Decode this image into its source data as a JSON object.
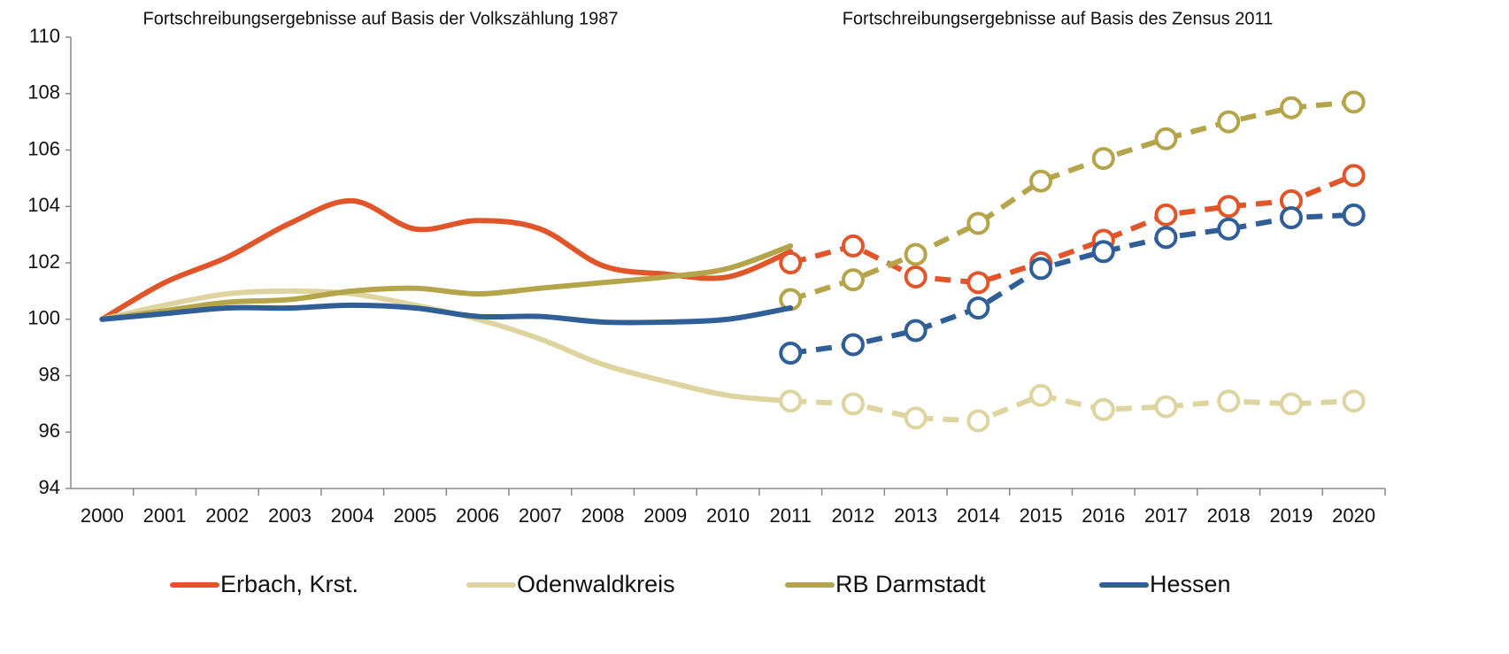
{
  "chart_data": {
    "type": "line",
    "annotations": [
      "Fortschreibungsergebnisse auf Basis der Volkszählung 1987",
      "Fortschreibungsergebnisse auf Basis des Zensus 2011"
    ],
    "categories": [
      "2000",
      "2001",
      "2002",
      "2003",
      "2004",
      "2005",
      "2006",
      "2007",
      "2008",
      "2009",
      "2010",
      "2011",
      "2012",
      "2013",
      "2014",
      "2015",
      "2016",
      "2017",
      "2018",
      "2019",
      "2020"
    ],
    "series": [
      {
        "name": "Erbach, Krst.",
        "color": "#e0562a",
        "values": [
          100,
          101.3,
          102.2,
          103.4,
          104.2,
          103.2,
          103.5,
          103.2,
          101.9,
          101.6,
          101.5,
          102.4,
          null,
          null,
          null,
          null,
          null,
          null,
          null,
          null,
          null
        ],
        "values_census": [
          null,
          null,
          null,
          null,
          null,
          null,
          null,
          null,
          null,
          null,
          null,
          102.0,
          102.6,
          101.5,
          101.3,
          102.0,
          102.8,
          103.7,
          104.0,
          104.2,
          105.1
        ]
      },
      {
        "name": "Odenwaldkreis",
        "color": "#ddd4a0",
        "values": [
          100,
          100.5,
          100.9,
          101.0,
          100.9,
          100.5,
          100.0,
          99.3,
          98.4,
          97.8,
          97.3,
          97.1,
          null,
          null,
          null,
          null,
          null,
          null,
          null,
          null,
          null
        ],
        "values_census": [
          null,
          null,
          null,
          null,
          null,
          null,
          null,
          null,
          null,
          null,
          null,
          97.1,
          97.0,
          96.5,
          96.4,
          97.3,
          96.8,
          96.9,
          97.1,
          97.0,
          97.1
        ]
      },
      {
        "name": "RB Darmstadt",
        "color": "#b5a54a",
        "values": [
          100,
          100.3,
          100.6,
          100.7,
          101.0,
          101.1,
          100.9,
          101.1,
          101.3,
          101.5,
          101.8,
          102.6,
          null,
          null,
          null,
          null,
          null,
          null,
          null,
          null,
          null
        ],
        "values_census": [
          null,
          null,
          null,
          null,
          null,
          null,
          null,
          null,
          null,
          null,
          null,
          100.7,
          101.4,
          102.3,
          103.4,
          104.9,
          105.7,
          106.4,
          107.0,
          107.5,
          107.7
        ]
      },
      {
        "name": "Hessen",
        "color": "#2f5f96",
        "values": [
          100,
          100.2,
          100.4,
          100.4,
          100.5,
          100.4,
          100.1,
          100.1,
          99.9,
          99.9,
          100.0,
          100.4,
          null,
          null,
          null,
          null,
          null,
          null,
          null,
          null,
          null
        ],
        "values_census": [
          null,
          null,
          null,
          null,
          null,
          null,
          null,
          null,
          null,
          null,
          null,
          98.8,
          99.1,
          99.6,
          100.4,
          101.8,
          102.4,
          102.9,
          103.2,
          103.6,
          103.7
        ]
      }
    ],
    "ylim": [
      94,
      110
    ],
    "yticks": [
      94,
      96,
      98,
      100,
      102,
      104,
      106,
      108,
      110
    ],
    "grid": false,
    "legend": "bottom"
  }
}
